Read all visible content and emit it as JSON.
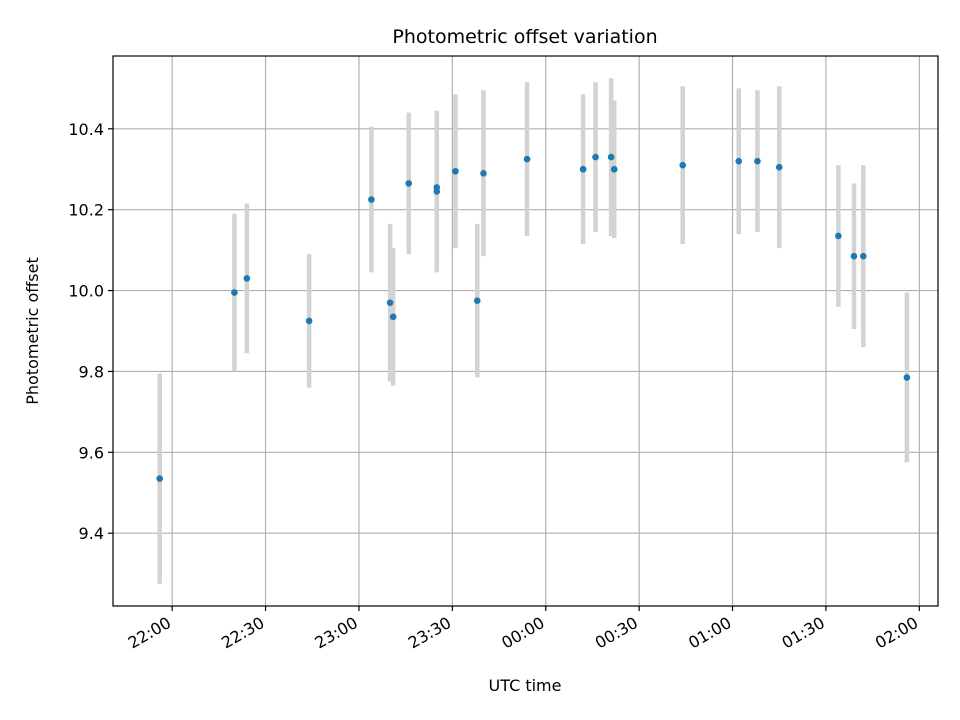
{
  "chart_data": {
    "type": "scatter",
    "title": "Photometric offset variation",
    "xlabel": "UTC time",
    "ylabel": "Photometric offset",
    "x_axis": "time",
    "x_ticks": [
      "22:00",
      "22:30",
      "23:00",
      "23:30",
      "00:00",
      "00:30",
      "01:00",
      "01:30",
      "02:00"
    ],
    "x_range": [
      "21:41",
      "02:06"
    ],
    "y_ticks": [
      "9.4",
      "9.6",
      "9.8",
      "10.0",
      "10.2",
      "10.4"
    ],
    "ylim": [
      9.22,
      10.58
    ],
    "grid": true,
    "colors": {
      "point": "#1f77b4",
      "errorbar": "#d3d3d3",
      "grid": "#b0b0b0"
    },
    "points": [
      {
        "x": "21:56",
        "y": 9.535,
        "err": 0.26
      },
      {
        "x": "22:20",
        "y": 9.995,
        "err": 0.195
      },
      {
        "x": "22:24",
        "y": 10.03,
        "err": 0.185
      },
      {
        "x": "22:44",
        "y": 9.925,
        "err": 0.165
      },
      {
        "x": "23:04",
        "y": 10.225,
        "err": 0.18
      },
      {
        "x": "23:10",
        "y": 9.97,
        "err": 0.195
      },
      {
        "x": "23:11",
        "y": 9.935,
        "err": 0.17
      },
      {
        "x": "23:16",
        "y": 10.265,
        "err": 0.175
      },
      {
        "x": "23:25",
        "y": 10.255,
        "err": 0.19
      },
      {
        "x": "23:25",
        "y": 10.245,
        "err": 0.2
      },
      {
        "x": "23:31",
        "y": 10.295,
        "err": 0.19
      },
      {
        "x": "23:38",
        "y": 9.975,
        "err": 0.19
      },
      {
        "x": "23:40",
        "y": 10.29,
        "err": 0.205
      },
      {
        "x": "23:54",
        "y": 10.325,
        "err": 0.19
      },
      {
        "x": "00:12",
        "y": 10.3,
        "err": 0.185
      },
      {
        "x": "00:16",
        "y": 10.33,
        "err": 0.185
      },
      {
        "x": "00:21",
        "y": 10.33,
        "err": 0.195
      },
      {
        "x": "00:22",
        "y": 10.3,
        "err": 0.17
      },
      {
        "x": "00:44",
        "y": 10.31,
        "err": 0.195
      },
      {
        "x": "01:02",
        "y": 10.32,
        "err": 0.18
      },
      {
        "x": "01:08",
        "y": 10.32,
        "err": 0.175
      },
      {
        "x": "01:15",
        "y": 10.305,
        "err": 0.2
      },
      {
        "x": "01:34",
        "y": 10.135,
        "err": 0.175
      },
      {
        "x": "01:39",
        "y": 10.085,
        "err": 0.18
      },
      {
        "x": "01:42",
        "y": 10.085,
        "err": 0.225
      },
      {
        "x": "01:56",
        "y": 9.785,
        "err": 0.21
      }
    ]
  }
}
